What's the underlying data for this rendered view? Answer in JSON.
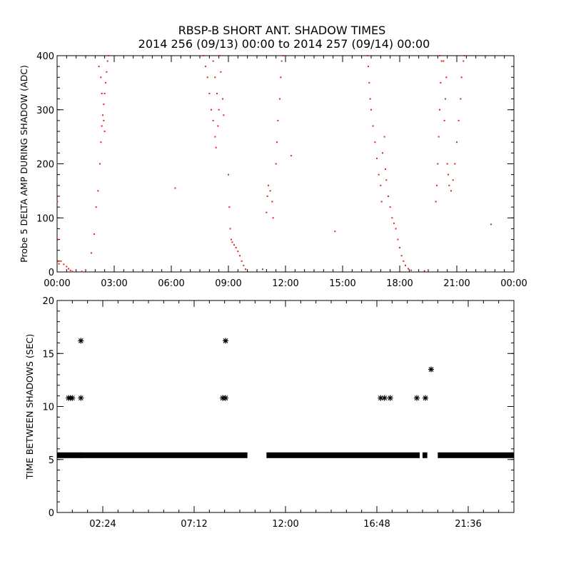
{
  "header": {
    "title": "RBSP-B SHORT ANT. SHADOW TIMES",
    "subtitle": "2014 256 (09/13) 00:00 to 2014 257 (09/14) 00:00"
  },
  "colors": {
    "top_series": "#e8241c",
    "bottom_series": "#000000",
    "axes": "#000000"
  },
  "chart_data": [
    {
      "type": "scatter",
      "ylabel": "Probe 5 DELTA AMP DURING SHADOW (ADC)",
      "xlabel": "",
      "x_unit": "hours",
      "xlim": [
        0,
        24
      ],
      "ylim": [
        0,
        400
      ],
      "x_tick_values": [
        0,
        3,
        6,
        9,
        12,
        15,
        18,
        21,
        24
      ],
      "x_tick_labels": [
        "00:00",
        "03:00",
        "06:00",
        "09:00",
        "12:00",
        "15:00",
        "18:00",
        "21:00",
        "00:00"
      ],
      "y_tick_values": [
        0,
        100,
        200,
        300,
        400
      ],
      "y_tick_labels": [
        "0",
        "100",
        "200",
        "300",
        "400"
      ],
      "series": [
        {
          "marker": "dot",
          "color": "#e8241c",
          "points": [
            [
              0.0,
              160
            ],
            [
              0.02,
              130
            ],
            [
              0.05,
              60
            ],
            [
              0.05,
              20
            ],
            [
              0.1,
              15
            ],
            [
              0.2,
              20
            ],
            [
              0.35,
              14
            ],
            [
              0.5,
              10
            ],
            [
              0.6,
              6
            ],
            [
              0.7,
              3
            ],
            [
              0.8,
              1
            ],
            [
              1.3,
              1
            ],
            [
              1.8,
              35
            ],
            [
              1.95,
              70
            ],
            [
              2.05,
              120
            ],
            [
              2.15,
              150
            ],
            [
              2.25,
              200
            ],
            [
              2.3,
              240
            ],
            [
              2.35,
              270
            ],
            [
              2.4,
              290
            ],
            [
              2.45,
              310
            ],
            [
              2.5,
              330
            ],
            [
              2.55,
              350
            ],
            [
              2.6,
              370
            ],
            [
              2.65,
              390
            ],
            [
              2.7,
              400
            ],
            [
              2.2,
              380
            ],
            [
              2.3,
              360
            ],
            [
              2.35,
              330
            ],
            [
              2.45,
              280
            ],
            [
              2.5,
              260
            ],
            [
              6.2,
              155
            ],
            [
              7.7,
              400
            ],
            [
              7.8,
              380
            ],
            [
              7.9,
              360
            ],
            [
              8.0,
              330
            ],
            [
              8.1,
              300
            ],
            [
              8.2,
              280
            ],
            [
              8.3,
              250
            ],
            [
              8.35,
              230
            ],
            [
              8.45,
              270
            ],
            [
              8.5,
              300
            ],
            [
              8.4,
              330
            ],
            [
              8.3,
              360
            ],
            [
              8.2,
              390
            ],
            [
              8.55,
              400
            ],
            [
              8.6,
              370
            ],
            [
              8.7,
              320
            ],
            [
              8.75,
              290
            ],
            [
              9.0,
              180
            ],
            [
              9.05,
              120
            ],
            [
              9.1,
              80
            ],
            [
              9.15,
              60
            ],
            [
              9.2,
              55
            ],
            [
              9.3,
              50
            ],
            [
              9.4,
              45
            ],
            [
              9.5,
              38
            ],
            [
              9.6,
              30
            ],
            [
              9.7,
              20
            ],
            [
              9.8,
              12
            ],
            [
              9.9,
              5
            ],
            [
              10.8,
              5
            ],
            [
              11.0,
              110
            ],
            [
              11.05,
              140
            ],
            [
              11.1,
              160
            ],
            [
              11.2,
              150
            ],
            [
              11.3,
              130
            ],
            [
              11.35,
              100
            ],
            [
              11.5,
              200
            ],
            [
              11.55,
              240
            ],
            [
              11.6,
              280
            ],
            [
              11.7,
              320
            ],
            [
              11.75,
              360
            ],
            [
              11.8,
              390
            ],
            [
              11.9,
              400
            ],
            [
              12.3,
              215
            ],
            [
              14.6,
              75
            ],
            [
              16.3,
              400
            ],
            [
              16.35,
              380
            ],
            [
              16.4,
              350
            ],
            [
              16.45,
              320
            ],
            [
              16.5,
              300
            ],
            [
              16.6,
              270
            ],
            [
              16.7,
              240
            ],
            [
              16.8,
              210
            ],
            [
              16.9,
              180
            ],
            [
              17.0,
              160
            ],
            [
              17.05,
              130
            ],
            [
              17.1,
              220
            ],
            [
              17.2,
              250
            ],
            [
              17.25,
              190
            ],
            [
              17.3,
              170
            ],
            [
              17.4,
              140
            ],
            [
              17.5,
              120
            ],
            [
              17.6,
              100
            ],
            [
              17.7,
              90
            ],
            [
              17.8,
              80
            ],
            [
              17.9,
              60
            ],
            [
              18.0,
              45
            ],
            [
              18.1,
              30
            ],
            [
              18.2,
              20
            ],
            [
              18.3,
              12
            ],
            [
              18.45,
              6
            ],
            [
              18.6,
              3
            ],
            [
              19.3,
              2
            ],
            [
              19.9,
              130
            ],
            [
              19.95,
              160
            ],
            [
              20.0,
              200
            ],
            [
              20.05,
              250
            ],
            [
              20.1,
              300
            ],
            [
              20.15,
              350
            ],
            [
              20.2,
              390
            ],
            [
              20.1,
              400
            ],
            [
              20.5,
              200
            ],
            [
              20.55,
              180
            ],
            [
              20.6,
              160
            ],
            [
              20.7,
              150
            ],
            [
              20.8,
              170
            ],
            [
              20.9,
              200
            ],
            [
              21.0,
              240
            ],
            [
              21.1,
              280
            ],
            [
              21.2,
              320
            ],
            [
              21.25,
              360
            ],
            [
              21.35,
              390
            ],
            [
              21.4,
              400
            ],
            [
              20.35,
              280
            ],
            [
              20.4,
              320
            ],
            [
              20.45,
              360
            ],
            [
              20.3,
              390
            ],
            [
              22.8,
              88
            ]
          ]
        }
      ]
    },
    {
      "type": "scatter",
      "ylabel": "TIME BETWEEN SHADOWS (SEC)",
      "xlabel": "",
      "x_unit": "hours",
      "xlim": [
        0,
        24
      ],
      "ylim": [
        0,
        20
      ],
      "x_tick_values": [
        2.4,
        7.2,
        12.0,
        16.8,
        21.6
      ],
      "x_tick_labels": [
        "02:24",
        "07:12",
        "12:00",
        "16:48",
        "21:36"
      ],
      "y_tick_values": [
        0,
        5,
        10,
        15,
        20
      ],
      "y_tick_labels": [
        "0",
        "5",
        "10",
        "15",
        "20"
      ],
      "segments": [
        {
          "x_start": 0.0,
          "x_end": 10.0,
          "y": 5.4
        },
        {
          "x_start": 11.0,
          "x_end": 19.05,
          "y": 5.4
        },
        {
          "x_start": 19.2,
          "x_end": 19.45,
          "y": 5.4
        },
        {
          "x_start": 20.0,
          "x_end": 24.0,
          "y": 5.4
        }
      ],
      "series": [
        {
          "marker": "asterisk",
          "color": "#000000",
          "points": [
            [
              0.6,
              10.8
            ],
            [
              0.7,
              10.8
            ],
            [
              0.8,
              10.8
            ],
            [
              1.25,
              16.2
            ],
            [
              1.25,
              10.8
            ],
            [
              1.25,
              5.4
            ],
            [
              8.7,
              10.8
            ],
            [
              8.85,
              10.8
            ],
            [
              8.85,
              16.2
            ],
            [
              17.0,
              10.8
            ],
            [
              17.2,
              10.8
            ],
            [
              17.5,
              10.8
            ],
            [
              18.9,
              10.8
            ],
            [
              19.35,
              10.8
            ],
            [
              19.65,
              13.5
            ]
          ]
        }
      ]
    }
  ]
}
